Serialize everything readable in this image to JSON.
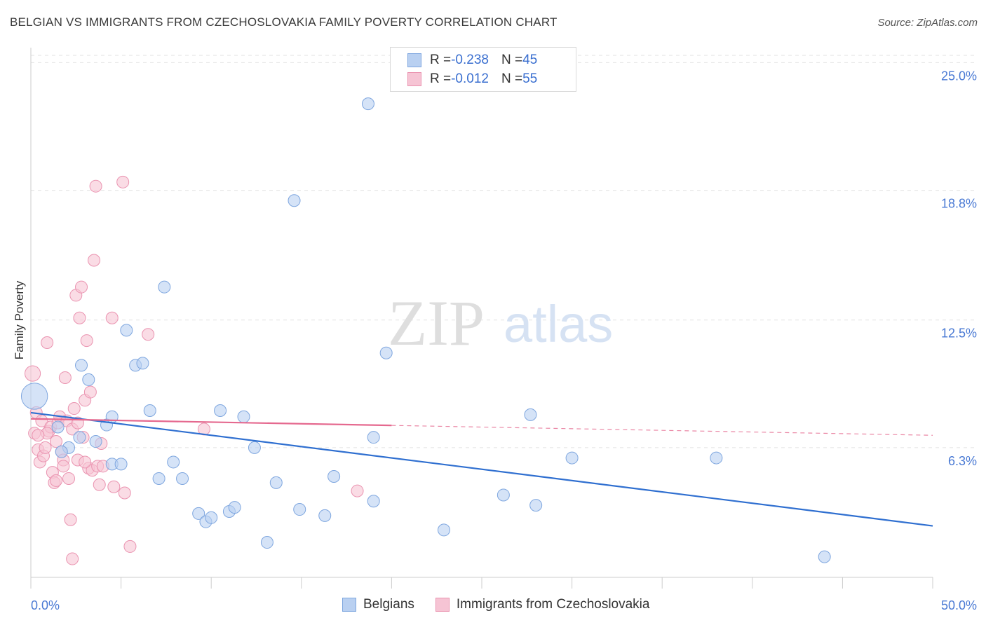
{
  "title": "BELGIAN VS IMMIGRANTS FROM CZECHOSLOVAKIA FAMILY POVERTY CORRELATION CHART",
  "source": "Source: ZipAtlas.com",
  "watermark": {
    "zip": "ZIP",
    "atlas": "atlas"
  },
  "colors": {
    "belgians_fill": "#b9d0f1",
    "belgians_stroke": "#7ea6df",
    "belgians_line": "#2f6fd0",
    "czech_fill": "#f6c4d4",
    "czech_stroke": "#ea93b0",
    "czech_line": "#e5698f",
    "grid": "#e2e2e2",
    "tick_text": "#4a7ad4"
  },
  "legend_top": [
    {
      "r_label": "R = ",
      "r_value": "-0.238",
      "n_label": "N = ",
      "n_value": "45"
    },
    {
      "r_label": "R = ",
      "r_value": "-0.012",
      "n_label": "N = ",
      "n_value": "55"
    }
  ],
  "chart_data": {
    "type": "scatter",
    "title": "BELGIAN VS IMMIGRANTS FROM CZECHOSLOVAKIA FAMILY POVERTY CORRELATION CHART",
    "xlabel": "",
    "ylabel": "Family Poverty",
    "xlim": [
      0,
      50
    ],
    "ylim": [
      0,
      26
    ],
    "x_tick_labels": [
      {
        "value": 0,
        "label": "0.0%"
      },
      {
        "value": 50,
        "label": "50.0%"
      }
    ],
    "y_tick_labels": [
      {
        "value": 6.3,
        "label": "6.3%"
      },
      {
        "value": 12.5,
        "label": "12.5%"
      },
      {
        "value": 18.8,
        "label": "18.8%"
      },
      {
        "value": 25.0,
        "label": "25.0%"
      }
    ],
    "grid": true,
    "legend_placement": "bottom-center",
    "series": [
      {
        "name": "Belgians",
        "trendline": {
          "x": [
            0,
            50
          ],
          "y": [
            8.0,
            2.5
          ],
          "solid_until": 50
        },
        "points": [
          [
            0.2,
            8.8,
            2.2
          ],
          [
            1.5,
            7.3,
            1
          ],
          [
            2.1,
            6.3,
            1
          ],
          [
            2.7,
            6.8,
            1
          ],
          [
            1.7,
            6.1,
            1
          ],
          [
            2.8,
            10.3,
            1
          ],
          [
            3.2,
            9.6,
            1
          ],
          [
            3.6,
            6.6,
            1
          ],
          [
            4.2,
            7.4,
            1
          ],
          [
            4.5,
            7.8,
            1
          ],
          [
            5.3,
            12.0,
            1
          ],
          [
            5.8,
            10.3,
            1
          ],
          [
            6.2,
            10.4,
            1
          ],
          [
            6.6,
            8.1,
            1
          ],
          [
            7.1,
            4.8,
            1
          ],
          [
            7.4,
            14.1,
            1
          ],
          [
            7.9,
            5.6,
            1
          ],
          [
            8.4,
            4.8,
            1
          ],
          [
            9.3,
            3.1,
            1
          ],
          [
            9.7,
            2.7,
            1
          ],
          [
            10.0,
            2.9,
            1
          ],
          [
            10.5,
            8.1,
            1
          ],
          [
            11.0,
            3.2,
            1
          ],
          [
            11.3,
            3.4,
            1
          ],
          [
            11.8,
            7.8,
            1
          ],
          [
            12.4,
            6.3,
            1
          ],
          [
            13.1,
            1.7,
            1
          ],
          [
            13.6,
            4.6,
            1
          ],
          [
            14.6,
            18.3,
            1
          ],
          [
            14.9,
            3.3,
            1
          ],
          [
            16.3,
            3.0,
            1
          ],
          [
            16.8,
            4.9,
            1
          ],
          [
            18.7,
            23.0,
            1
          ],
          [
            19.0,
            3.7,
            1
          ],
          [
            19.0,
            6.8,
            1
          ],
          [
            19.7,
            10.9,
            1
          ],
          [
            4.5,
            5.5,
            1
          ],
          [
            22.9,
            2.3,
            1
          ],
          [
            26.2,
            4.0,
            1
          ],
          [
            28.0,
            3.5,
            1
          ],
          [
            27.7,
            7.9,
            1
          ],
          [
            30.0,
            5.8,
            1
          ],
          [
            38.0,
            5.8,
            1
          ],
          [
            44.0,
            1.0,
            1
          ],
          [
            5.0,
            5.5,
            1
          ]
        ]
      },
      {
        "name": "Immigrants from Czechoslovakia",
        "trendline": {
          "x": [
            0,
            50
          ],
          "y": [
            7.7,
            6.9
          ],
          "solid_until": 20
        },
        "points": [
          [
            0.1,
            9.9,
            1.3
          ],
          [
            0.2,
            7.0,
            1
          ],
          [
            0.3,
            8.0,
            1
          ],
          [
            0.4,
            6.2,
            1
          ],
          [
            0.5,
            5.6,
            1
          ],
          [
            0.6,
            7.6,
            1
          ],
          [
            0.7,
            5.9,
            1
          ],
          [
            0.8,
            6.3,
            1
          ],
          [
            0.9,
            11.4,
            1
          ],
          [
            1.0,
            7.1,
            1
          ],
          [
            1.1,
            7.3,
            1
          ],
          [
            1.2,
            5.1,
            1
          ],
          [
            1.3,
            4.6,
            1
          ],
          [
            1.4,
            4.7,
            1
          ],
          [
            1.5,
            7.5,
            1
          ],
          [
            1.6,
            7.8,
            1
          ],
          [
            1.7,
            6.1,
            1
          ],
          [
            1.8,
            5.7,
            1
          ],
          [
            1.9,
            9.7,
            1
          ],
          [
            2.0,
            7.6,
            1
          ],
          [
            2.1,
            4.8,
            1
          ],
          [
            2.2,
            2.8,
            1
          ],
          [
            2.3,
            7.2,
            1
          ],
          [
            2.4,
            8.2,
            1
          ],
          [
            2.5,
            13.7,
            1
          ],
          [
            2.6,
            7.5,
            1
          ],
          [
            2.7,
            12.6,
            1
          ],
          [
            2.8,
            14.1,
            1
          ],
          [
            2.9,
            6.8,
            1
          ],
          [
            2.3,
            0.9,
            1
          ],
          [
            3.1,
            11.5,
            1
          ],
          [
            3.0,
            8.6,
            1
          ],
          [
            3.2,
            5.3,
            1
          ],
          [
            3.3,
            9.0,
            1
          ],
          [
            3.4,
            5.2,
            1
          ],
          [
            3.5,
            15.4,
            1
          ],
          [
            3.6,
            19.0,
            1
          ],
          [
            3.7,
            5.4,
            1
          ],
          [
            3.8,
            4.5,
            1
          ],
          [
            3.9,
            6.5,
            1
          ],
          [
            4.0,
            5.4,
            1
          ],
          [
            4.6,
            4.4,
            1
          ],
          [
            4.5,
            12.6,
            1
          ],
          [
            5.1,
            19.2,
            1
          ],
          [
            5.2,
            4.1,
            1
          ],
          [
            5.5,
            1.5,
            1
          ],
          [
            6.5,
            11.8,
            1
          ],
          [
            9.6,
            7.2,
            1
          ],
          [
            18.1,
            4.2,
            1
          ],
          [
            1.4,
            6.6,
            1
          ],
          [
            0.9,
            7.0,
            1
          ],
          [
            1.8,
            5.4,
            1
          ],
          [
            2.6,
            5.7,
            1
          ],
          [
            0.4,
            6.9,
            1
          ],
          [
            3.0,
            5.6,
            1
          ]
        ]
      }
    ]
  }
}
